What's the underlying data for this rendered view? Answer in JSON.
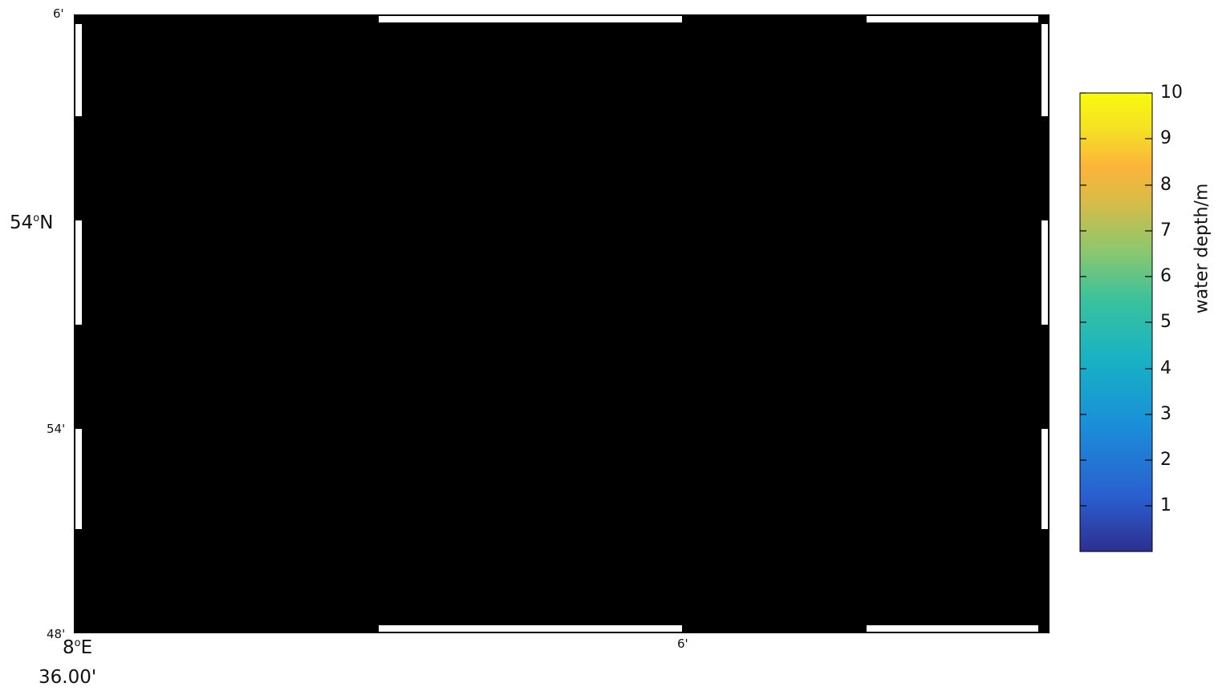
{
  "map": {
    "x_axis": {
      "ticks": [
        {
          "line1": "8",
          "deg": "o",
          "line2": "E",
          "line3": "36.00'"
        },
        {
          "line1": "6'"
        }
      ]
    },
    "y_axis": {
      "ticks": [
        {
          "text": "6'"
        },
        {
          "pre": "54",
          "deg": "o",
          "post": "N"
        },
        {
          "text": "54'"
        },
        {
          "text": "48'"
        }
      ]
    }
  },
  "colorbar": {
    "label": "water depth/m",
    "range": [
      0,
      10
    ],
    "ticks": [
      "10",
      "9",
      "8",
      "7",
      "6",
      "5",
      "4",
      "3",
      "2",
      "1"
    ],
    "colors": [
      "#2c2f8e",
      "#2a5fd0",
      "#1a90d8",
      "#18b2c4",
      "#3bc29c",
      "#8fc76b",
      "#d6bc48",
      "#fcb43a",
      "#f5e124",
      "#f9fa0d"
    ]
  },
  "colors": {
    "land": "#fffdca",
    "deep_water": "#2e3594",
    "channel": "#f8f10e",
    "grid": "#000000"
  }
}
